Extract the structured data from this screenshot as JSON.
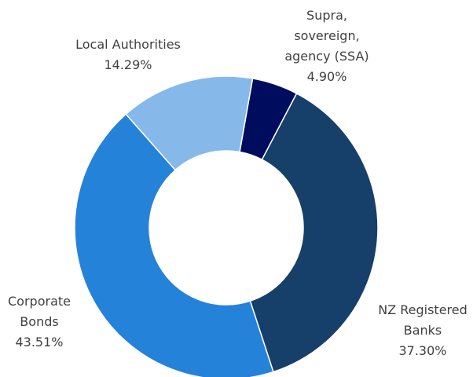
{
  "chart_data": {
    "type": "donut",
    "categories": [
      "Supra, sovereign, agency (SSA)",
      "NZ Registered Banks",
      "Corporate Bonds",
      "Local Authorities"
    ],
    "values": [
      4.9,
      37.3,
      43.51,
      14.29
    ],
    "value_labels": [
      "4.90%",
      "37.30%",
      "43.51%",
      "14.29%"
    ],
    "colors": [
      "#000c5e",
      "#163f6a",
      "#2582d9",
      "#86b9ea"
    ]
  }
}
